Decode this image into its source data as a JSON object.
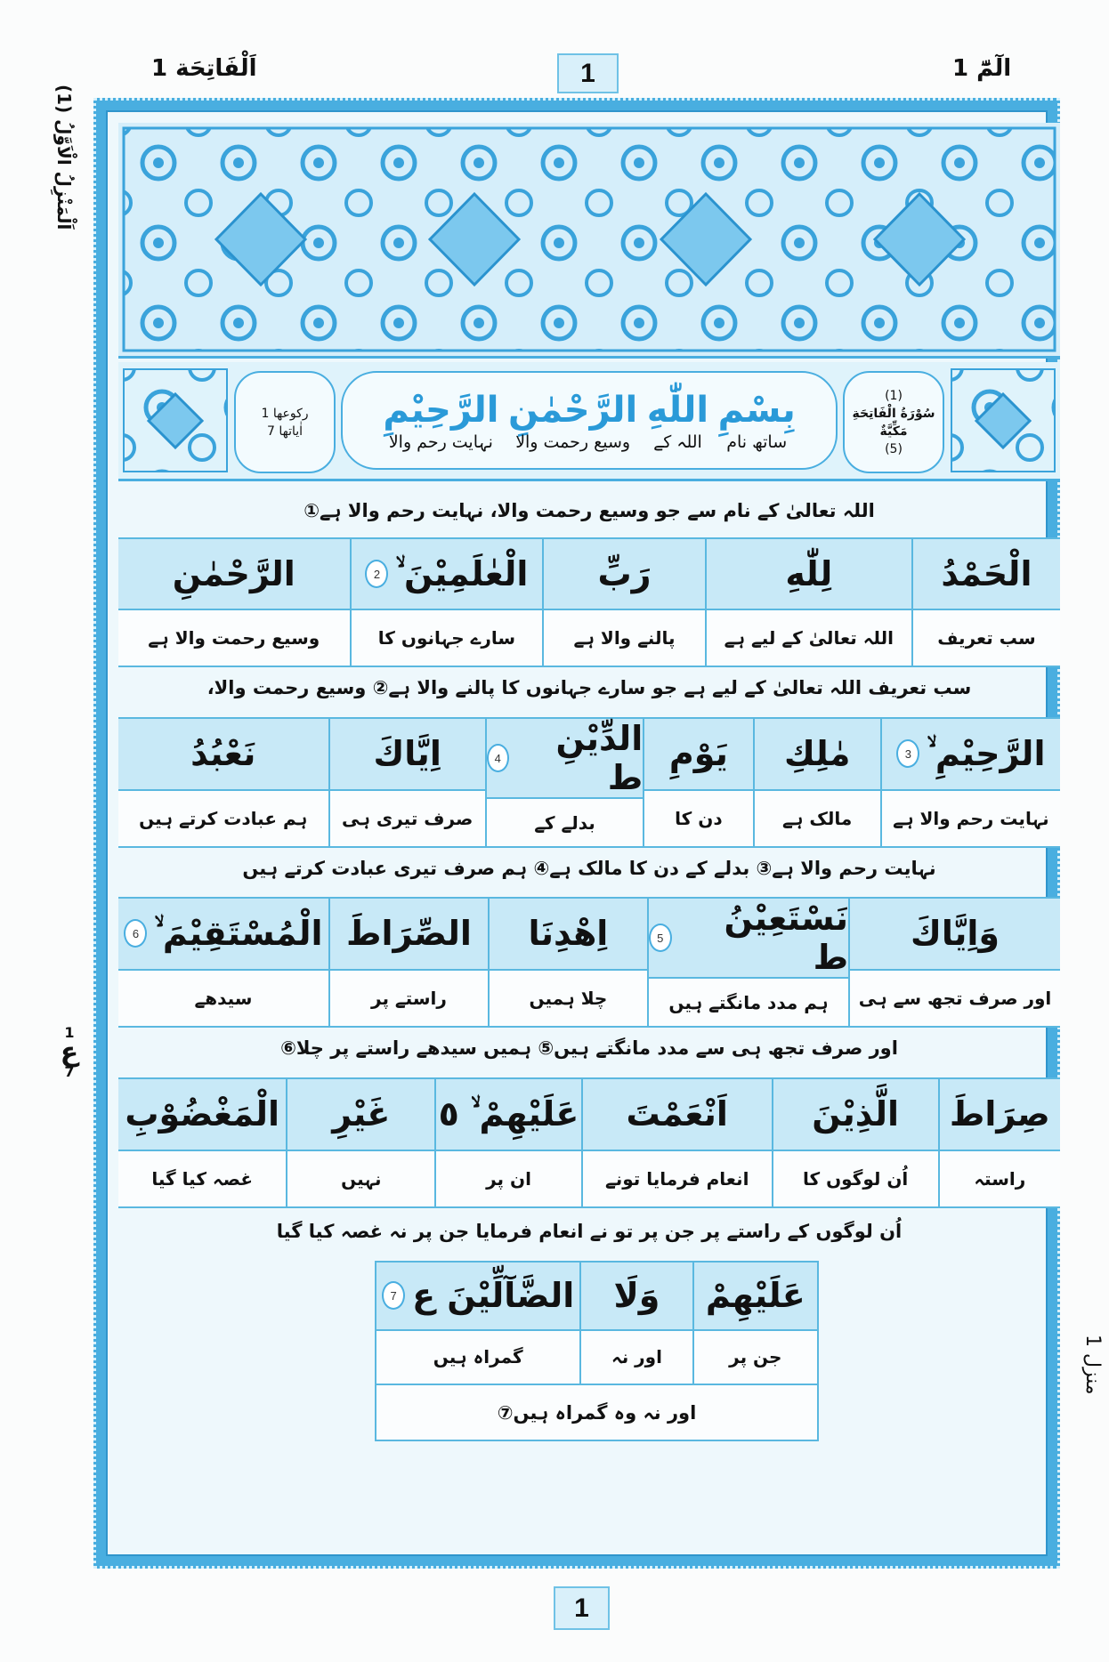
{
  "header": {
    "left_title": "اَلْفَاتِحَة 1",
    "page_number": "1",
    "right_title": "الٓمّٓ 1"
  },
  "margins": {
    "left_vertical": "اَلْمَنْزِلُ الْاَوَّلُ (1)",
    "ruku_mark": {
      "symbol": "ع",
      "top": "1",
      "bottom": "7"
    },
    "right_vertical": "منزل 1"
  },
  "colors": {
    "frame": "#49aee0",
    "accent_text": "#2a9ad8",
    "cell_fill": "#c8e9f7"
  },
  "surah_info": {
    "number": "(1)",
    "name": "سُوْرَةُ الْفَاتِحَةِ",
    "type": "مَكِّيَّةٌ",
    "order": "(5)",
    "ruku": "رکوعها 1",
    "ayat": "اٰیاتها 7"
  },
  "bismillah": [
    {
      "ar": "بِسْمِ",
      "ur": "ساتھ نام"
    },
    {
      "ar": "اللّٰهِ",
      "ur": "اللہ کے"
    },
    {
      "ar": "الرَّحْمٰنِ",
      "ur": "وسیع رحمت والا"
    },
    {
      "ar": "الرَّحِيْمِ",
      "ur": "نہایت رحم والا"
    }
  ],
  "sections": [
    {
      "sentence": "اللہ تعالیٰ کے نام سے جو وسیع رحمت والا، نہایت رحم والا ہے①",
      "words": []
    },
    {
      "sentence": "سب تعریف اللہ تعالیٰ کے لیے ہے جو سارے جہانوں کا پالنے والا ہے② وسیع رحمت والا،",
      "words": [
        {
          "ar": "الْحَمْدُ",
          "ur": "سب تعریف"
        },
        {
          "ar": "لِلّٰهِ",
          "ur": "اللہ تعالیٰ کے لیے ہے"
        },
        {
          "ar": "رَبِّ",
          "ur": "پالنے والا ہے"
        },
        {
          "ar": "الْعٰلَمِيْنَ ۙ",
          "ayah": "2",
          "ur": "سارے جہانوں کا"
        },
        {
          "ar": "الرَّحْمٰنِ",
          "ur": "وسیع رحمت والا ہے"
        }
      ]
    },
    {
      "sentence": "نہایت رحم والا ہے③ بدلے کے دن کا مالک ہے④ ہم صرف تیری عبادت کرتے ہیں",
      "words": [
        {
          "ar": "الرَّحِيْمِ ۙ",
          "ayah": "3",
          "ur": "نہایت رحم والا ہے"
        },
        {
          "ar": "مٰلِكِ",
          "ur": "مالک ہے"
        },
        {
          "ar": "يَوْمِ",
          "ur": "دن کا"
        },
        {
          "ar": "الدِّيْنِ ط",
          "ayah": "4",
          "ur": "بدلے کے"
        },
        {
          "ar": "اِيَّاكَ",
          "ur": "صرف تیری ہی"
        },
        {
          "ar": "نَعْبُدُ",
          "ur": "ہم عبادت کرتے ہیں"
        }
      ]
    },
    {
      "sentence": "اور صرف تجھ ہی سے مدد مانگتے ہیں⑤ ہمیں سیدھے راستے پر چلا⑥",
      "words": [
        {
          "ar": "وَاِيَّاكَ",
          "ur": "اور صرف تجھ سے ہی"
        },
        {
          "ar": "نَسْتَعِيْنُ ط",
          "ayah": "5",
          "ur": "ہم مدد مانگتے ہیں"
        },
        {
          "ar": "اِهْدِنَا",
          "ur": "چلا ہمیں"
        },
        {
          "ar": "الصِّرَاطَ",
          "ur": "راستے پر"
        },
        {
          "ar": "الْمُسْتَقِيْمَ ۙ",
          "ayah": "6",
          "ur": "سیدھے"
        }
      ]
    },
    {
      "sentence": "اُن لوگوں کے راستے پر جن پر تو نے انعام فرمایا جن پر نہ غصہ کیا گیا",
      "words": [
        {
          "ar": "صِرَاطَ",
          "ur": "راستہ"
        },
        {
          "ar": "الَّذِيْنَ",
          "ur": "اُن لوگوں کا"
        },
        {
          "ar": "اَنْعَمْتَ",
          "ur": "انعام فرمایا تونے"
        },
        {
          "ar": "عَلَيْهِمْ ۙ ٥",
          "ur": "ان پر"
        },
        {
          "ar": "غَيْرِ",
          "ur": "نہیں"
        },
        {
          "ar": "الْمَغْضُوْبِ",
          "ur": "غصہ کیا گیا"
        }
      ]
    }
  ],
  "final": {
    "words": [
      {
        "ar": "عَلَيْهِمْ",
        "ur": "جن پر"
      },
      {
        "ar": "وَلَا",
        "ur": "اور نہ"
      },
      {
        "ar": "الضَّآلِّيْنَ ع",
        "ayah": "7",
        "ur": "گمراہ ہیں"
      }
    ],
    "sentence": "اور نہ وہ گمراہ ہیں⑦"
  },
  "footer": {
    "page_number": "1"
  }
}
